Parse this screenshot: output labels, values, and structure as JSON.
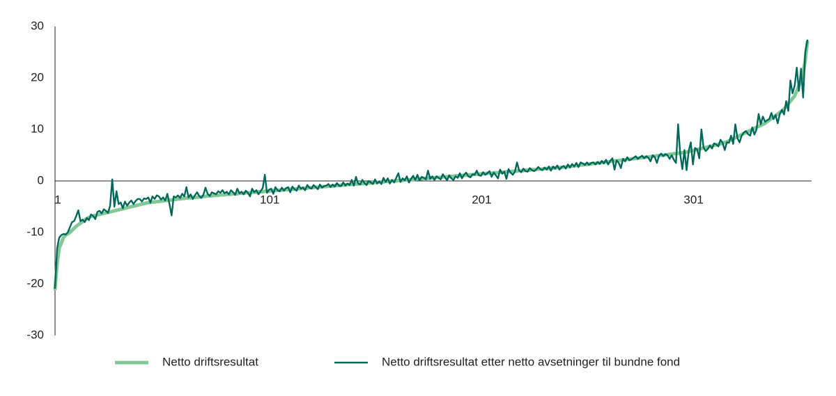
{
  "chart_data": {
    "type": "line",
    "xlim": [
      1,
      358
    ],
    "xticks": [
      1,
      101,
      201,
      301
    ],
    "ylim": [
      -30,
      30
    ],
    "yticks": [
      -30,
      -20,
      -10,
      0,
      10,
      20,
      30
    ],
    "series": [
      {
        "name": "Netto driftsresultat",
        "color": "#82c896",
        "values": [
          -21,
          -16,
          -13,
          -12,
          -11,
          -10.5,
          -10.3,
          -10,
          -9.6,
          -9.2,
          -8.8,
          -8.5,
          -8.2,
          -7.9,
          -7.6,
          -7.3,
          -7.1,
          -6.9,
          -6.8,
          -6.7,
          -6.6,
          -6.5,
          -6.4,
          -6.3,
          -6.2,
          -6.1,
          -6,
          -5.9,
          -5.8,
          -5.7,
          -5.6,
          -5.5,
          -5.4,
          -5.3,
          -5.2,
          -5.1,
          -5,
          -4.9,
          -4.8,
          -4.7,
          -4.6,
          -4.5,
          -4.4,
          -4.3,
          -4.2,
          -4.2,
          -4.1,
          -4.1,
          -4,
          -4,
          -3.9,
          -3.9,
          -3.8,
          -3.8,
          -3.7,
          -3.7,
          -3.6,
          -3.6,
          -3.5,
          -3.5,
          -3.4,
          -3.4,
          -3.3,
          -3.3,
          -3.3,
          -3.2,
          -3.2,
          -3.2,
          -3.1,
          -3.1,
          -3,
          -3,
          -2.9,
          -2.9,
          -2.9,
          -2.8,
          -2.8,
          -2.8,
          -2.7,
          -2.7,
          -2.7,
          -2.6,
          -2.6,
          -2.6,
          -2.5,
          -2.5,
          -2.5,
          -2.4,
          -2.4,
          -2.4,
          -2.3,
          -2.3,
          -2.3,
          -2.2,
          -2.2,
          -2.2,
          -2.1,
          -2.1,
          -2.1,
          -2,
          -2,
          -2,
          -1.9,
          -1.9,
          -1.9,
          -1.8,
          -1.8,
          -1.8,
          -1.7,
          -1.7,
          -1.7,
          -1.6,
          -1.6,
          -1.6,
          -1.5,
          -1.5,
          -1.5,
          -1.4,
          -1.4,
          -1.4,
          -1.3,
          -1.3,
          -1.3,
          -1.2,
          -1.2,
          -1.2,
          -1.1,
          -1.1,
          -1.1,
          -1,
          -1,
          -1,
          -0.9,
          -0.9,
          -0.9,
          -0.8,
          -0.8,
          -0.8,
          -0.7,
          -0.7,
          -0.7,
          -0.6,
          -0.6,
          -0.6,
          -0.5,
          -0.5,
          -0.5,
          -0.4,
          -0.4,
          -0.4,
          -0.3,
          -0.3,
          -0.3,
          -0.2,
          -0.2,
          -0.2,
          -0.1,
          -0.1,
          -0.1,
          0,
          0,
          0,
          0.1,
          0.1,
          0.1,
          0.2,
          0.2,
          0.2,
          0.3,
          0.3,
          0.3,
          0.4,
          0.4,
          0.4,
          0.5,
          0.5,
          0.5,
          0.6,
          0.6,
          0.6,
          0.7,
          0.7,
          0.7,
          0.8,
          0.8,
          0.8,
          0.9,
          0.9,
          0.9,
          1,
          1,
          1,
          1.1,
          1.1,
          1.1,
          1.2,
          1.2,
          1.2,
          1.3,
          1.3,
          1.3,
          1.4,
          1.4,
          1.4,
          1.5,
          1.5,
          1.5,
          1.6,
          1.6,
          1.6,
          1.7,
          1.7,
          1.7,
          1.8,
          1.8,
          1.8,
          1.9,
          1.9,
          1.9,
          2,
          2,
          2,
          2.1,
          2.1,
          2.1,
          2.2,
          2.2,
          2.2,
          2.3,
          2.3,
          2.3,
          2.4,
          2.4,
          2.4,
          2.5,
          2.5,
          2.5,
          2.6,
          2.6,
          2.6,
          2.7,
          2.7,
          2.8,
          2.8,
          2.9,
          2.9,
          3,
          3,
          3.1,
          3.1,
          3.2,
          3.2,
          3.3,
          3.3,
          3.4,
          3.4,
          3.5,
          3.5,
          3.6,
          3.6,
          3.7,
          3.7,
          3.8,
          3.8,
          3.9,
          3.9,
          4,
          4,
          4.1,
          4.1,
          4.2,
          4.2,
          4.3,
          4.3,
          4.4,
          4.4,
          4.5,
          4.5,
          4.6,
          4.6,
          4.7,
          4.7,
          4.8,
          4.8,
          4.9,
          4.9,
          5,
          5,
          5.1,
          5.1,
          5.2,
          5.2,
          5.3,
          5.3,
          5.4,
          5.4,
          5.5,
          5.5,
          5.6,
          5.7,
          5.8,
          5.9,
          6,
          6.1,
          6.2,
          6.3,
          6.4,
          6.5,
          6.6,
          6.7,
          6.8,
          6.9,
          7,
          7.1,
          7.2,
          7.3,
          7.5,
          7.6,
          7.8,
          8,
          8.2,
          8.4,
          8.6,
          8.8,
          9,
          9.2,
          9.4,
          9.6,
          9.8,
          10,
          10.2,
          10.4,
          10.6,
          10.8,
          11,
          11.2,
          11.5,
          11.8,
          12.1,
          12.4,
          12.7,
          13,
          13.3,
          13.6,
          14,
          14.5,
          15,
          15.5,
          16,
          16.5,
          17.5,
          18.5,
          19.5,
          21,
          23.5,
          27
        ]
      },
      {
        "name": "Netto driftsresultat etter netto avsetninger til bundne fond",
        "color": "#00685a",
        "values": [
          -20.8,
          -13,
          -11,
          -10.5,
          -10.3,
          -10.4,
          -10,
          -9,
          -8,
          -7.8,
          -6.8,
          -5.7,
          -7.8,
          -7.5,
          -8,
          -7.2,
          -7.6,
          -6.5,
          -6.8,
          -7.4,
          -6,
          -5.8,
          -6.3,
          -5.5,
          -5.8,
          -6.2,
          -4.8,
          0.3,
          -5,
          -2,
          -4.5,
          -4.2,
          -5.3,
          -4,
          -4.8,
          -4.2,
          -3.8,
          -4.5,
          -3.9,
          -3.5,
          -3.5,
          -4,
          -3.4,
          -3.5,
          -3.2,
          -4.2,
          -3,
          -3.5,
          -2.8,
          -3,
          -3.6,
          -3.2,
          -3.8,
          -2.5,
          -4.5,
          -6.7,
          -3,
          -3.2,
          -2.8,
          -3.3,
          -2.5,
          -3,
          -1.2,
          -3.2,
          -2.6,
          -3.5,
          -2.8,
          -2.2,
          -2.9,
          -3.3,
          -2.7,
          -1.3,
          -2.5,
          -2.9,
          -2.2,
          -2.4,
          -2.6,
          -2,
          -2.3,
          -1.8,
          -2.4,
          -2.1,
          -2.6,
          -1.8,
          -2.2,
          -2.7,
          -1.5,
          -2.4,
          -2.1,
          -2.6,
          -1.9,
          -2.3,
          -3,
          -1.5,
          -2.2,
          -1.8,
          -2.6,
          -2,
          -1.4,
          1.2,
          -2.3,
          -1.7,
          -1.5,
          -2.5,
          -1.2,
          -1.8,
          -2,
          -1.3,
          -1.9,
          -1.4,
          -1.2,
          -2.2,
          -1.1,
          -1.6,
          -1.9,
          -0.9,
          -1.5,
          -1.3,
          -1.8,
          -0.8,
          -1.3,
          -1.5,
          -0.8,
          -1.2,
          -1.6,
          -0.7,
          -1.3,
          -1,
          -0.9,
          -0.6,
          -1.2,
          -0.7,
          -1.1,
          -0.4,
          -0.9,
          -1,
          -0.3,
          -0.9,
          -0.5,
          -0.8,
          0.2,
          -0.9,
          0.8,
          -0.5,
          -0.7,
          0.2,
          -0.4,
          -0.8,
          0,
          -0.3,
          -0.6,
          0.3,
          -0.5,
          -0.1,
          -0.6,
          0.6,
          -0.2,
          0.5,
          -0.5,
          0.2,
          -0.3,
          0.6,
          1.5,
          -0.2,
          0.5,
          0.1,
          0.9,
          -0.3,
          0.4,
          1,
          0.2,
          1.2,
          0.1,
          0.8,
          0.6,
          0.3,
          2,
          0.4,
          0.9,
          0.2,
          0.9,
          0.6,
          0.3,
          1.3,
          0.7,
          0.1,
          1.1,
          0.5,
          0.2,
          0.9,
          0.6,
          1.5,
          0.5,
          1.2,
          1.6,
          0.9,
          0.7,
          1.3,
          1.2,
          2,
          1.1,
          1,
          1.7,
          1.2,
          1.5,
          1.9,
          0.8,
          1.6,
          1.1,
          0.5,
          2.2,
          1.4,
          1.8,
          0.4,
          2.3,
          1.6,
          1.2,
          1.8,
          3.6,
          2,
          1.7,
          2.4,
          1.9,
          1.8,
          2.5,
          2.1,
          1.9,
          2.2,
          2.7,
          2.3,
          2.1,
          2.6,
          2.2,
          2.8,
          2,
          2.8,
          2.4,
          3,
          2.2,
          2.7,
          2.9,
          2.4,
          3.2,
          2.6,
          3.3,
          2.8,
          3.5,
          2.7,
          3.6,
          3.4,
          3.1,
          3.6,
          3.1,
          3.5,
          3.6,
          3.2,
          3.7,
          3.3,
          3.9,
          3.4,
          4.1,
          3.2,
          3.9,
          4.4,
          2.2,
          4,
          3.5,
          2.5,
          4.3,
          3.8,
          4.6,
          4,
          4.2,
          4.5,
          4.8,
          4.3,
          4.6,
          4.9,
          4.4,
          4.8,
          4.5,
          3.8,
          5,
          4.6,
          3.5,
          4.9,
          5.3,
          4.8,
          5.2,
          5,
          4.3,
          5,
          4.1,
          3.5,
          11,
          5.2,
          2.3,
          6,
          2.1,
          5.8,
          7.5,
          3.2,
          6.4,
          6.1,
          4.4,
          10,
          6.5,
          5.8,
          6.2,
          6.9,
          6.3,
          7.3,
          7.1,
          6.7,
          8,
          7.4,
          6,
          7.5,
          7.4,
          8.8,
          7.2,
          11,
          8.3,
          7.5,
          8.8,
          9.4,
          9.7,
          9.1,
          8.8,
          10.4,
          9,
          10,
          13,
          11,
          12.5,
          11.5,
          11.8,
          12,
          13.2,
          12,
          12.8,
          11.2,
          13,
          13.8,
          12.9,
          15.5,
          13.6,
          19.5,
          17,
          18.5,
          22,
          17.5,
          21.8,
          16.2,
          25,
          27.3
        ]
      }
    ]
  }
}
